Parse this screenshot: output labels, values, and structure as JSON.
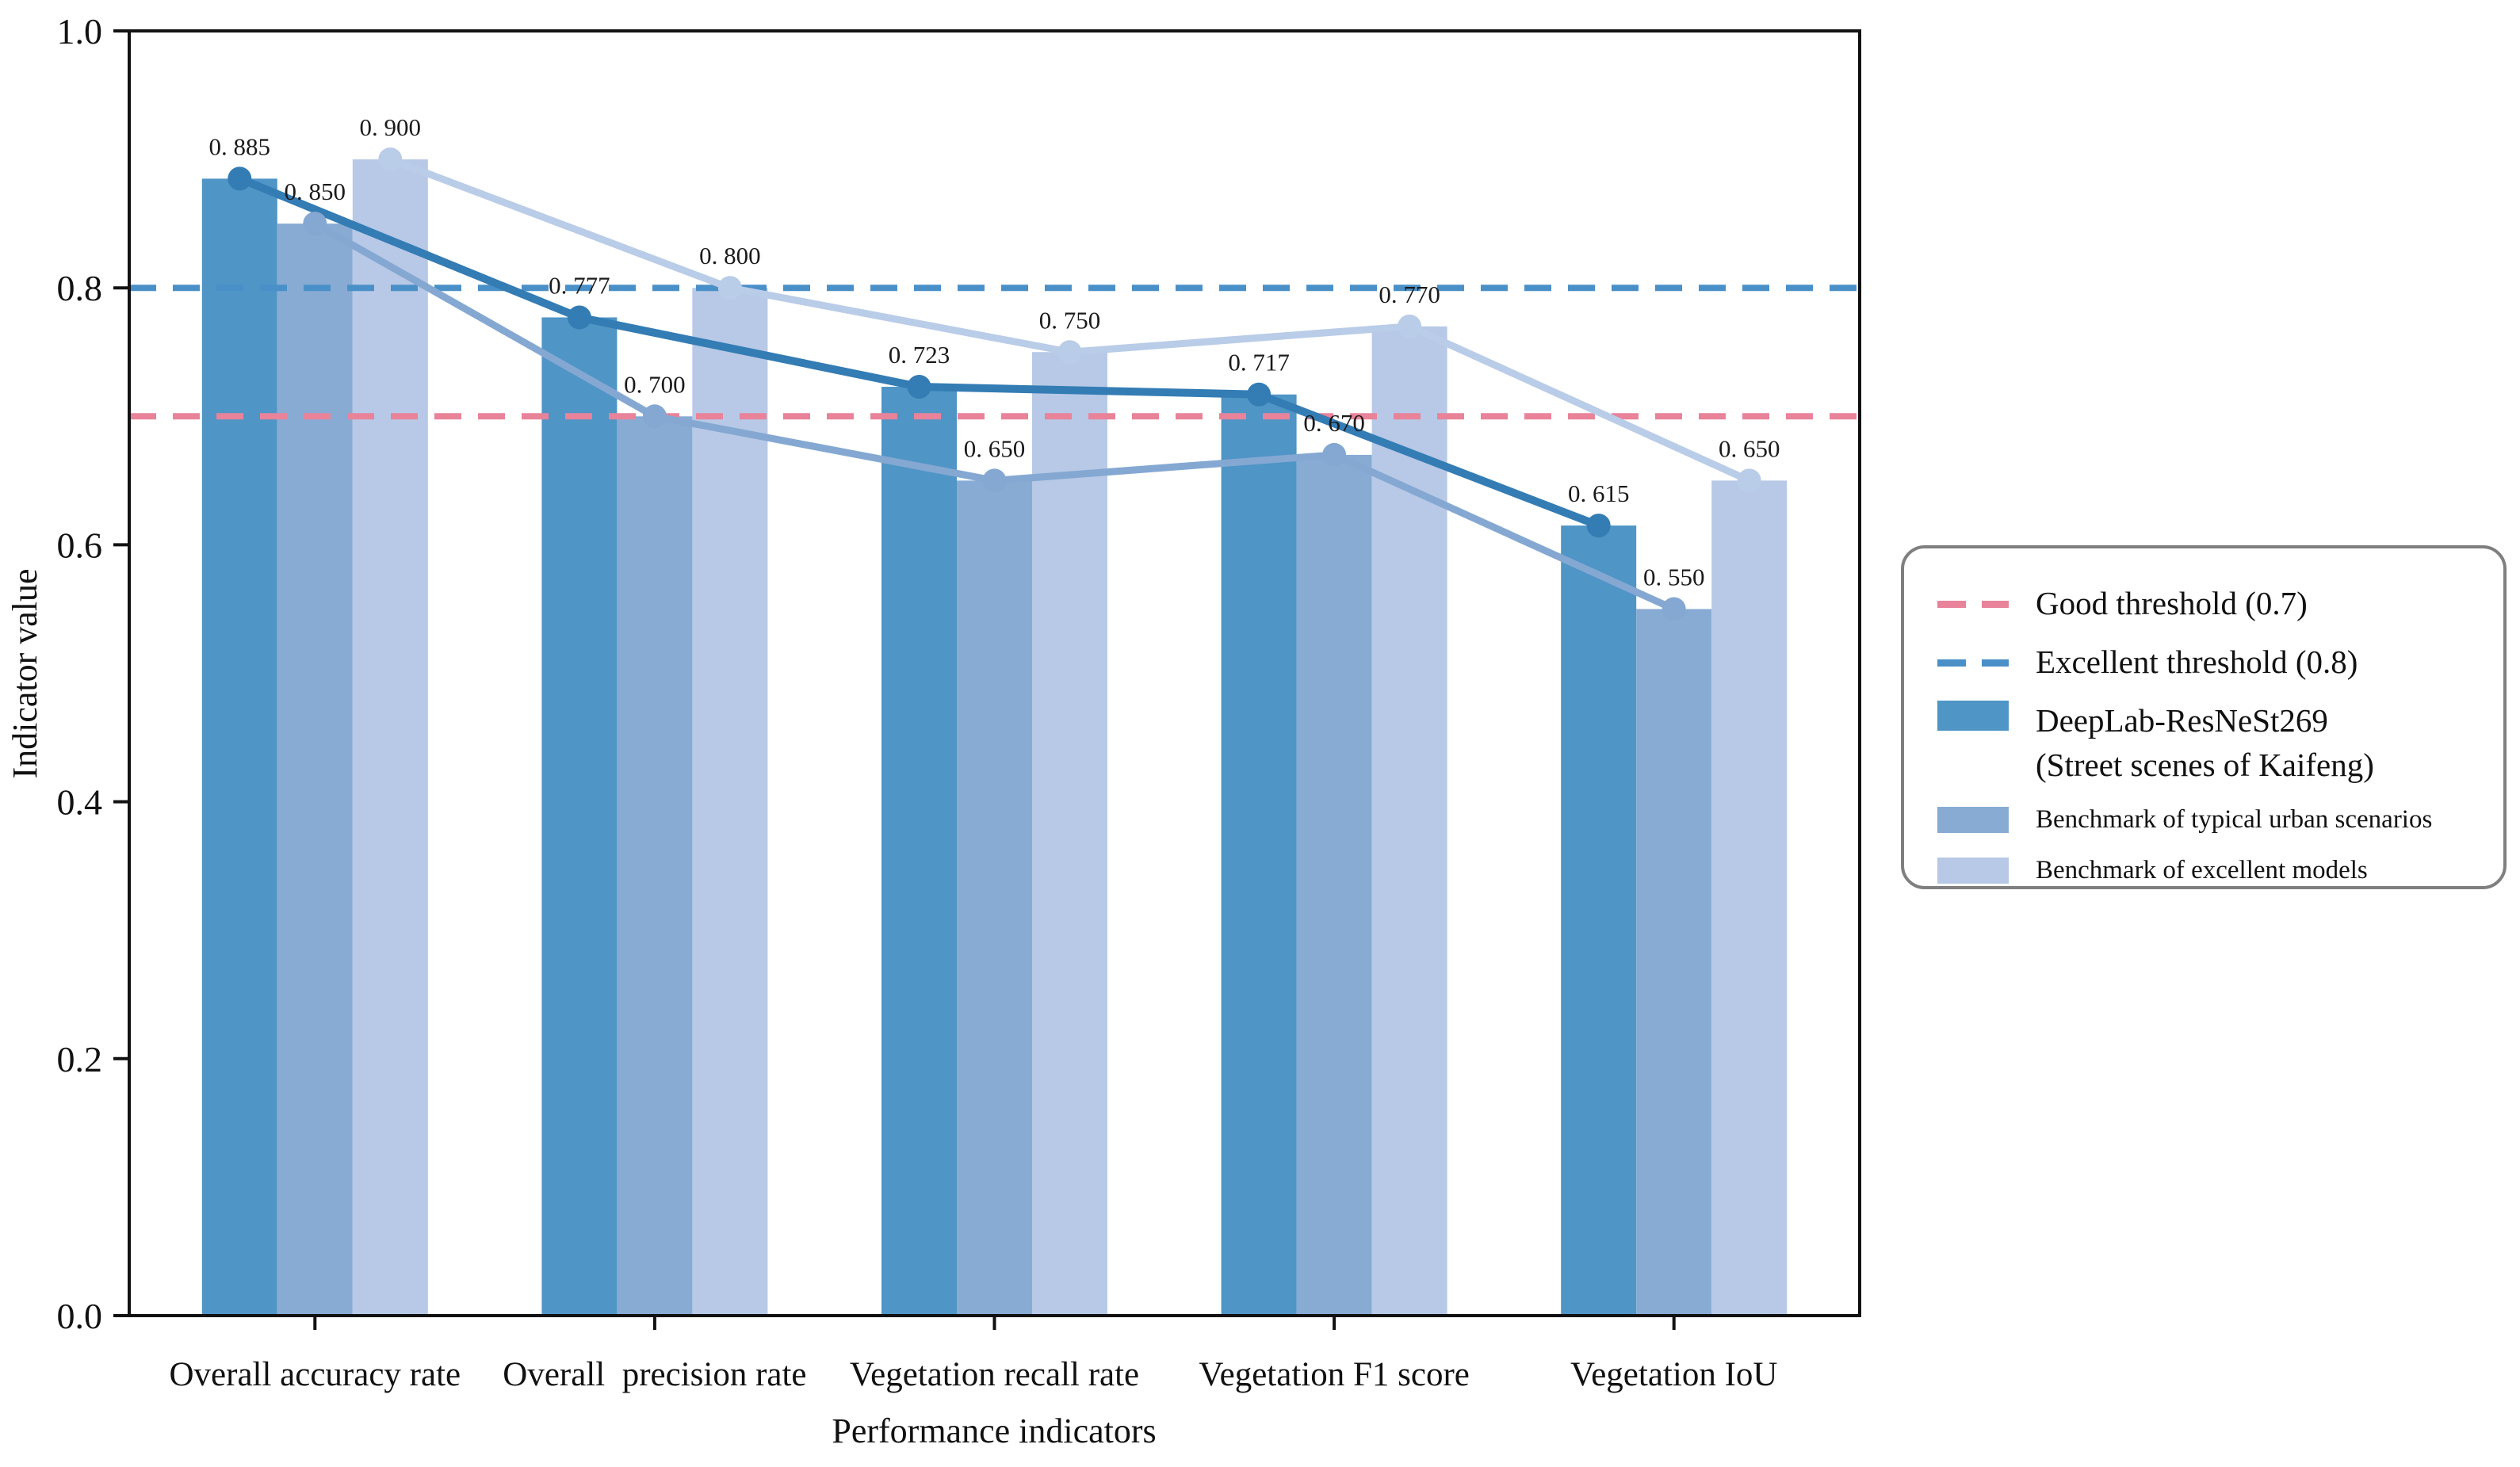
{
  "figure": {
    "background": "#ffffff",
    "axis_color": "#111111",
    "text_color": "#111111"
  },
  "chart_data": {
    "type": "bar",
    "line_overlay": true,
    "title": "",
    "xlabel": "Performance indicators",
    "ylabel": "Indicator value",
    "ylim": [
      0.0,
      1.0
    ],
    "yticks": [
      0.0,
      0.2,
      0.4,
      0.6,
      0.8,
      1.0
    ],
    "grid": false,
    "legend_position": "right-outside",
    "categories": [
      "Overall accuracy rate",
      "Overall  precision rate",
      "Vegetation recall rate",
      "Vegetation F1 score",
      "Vegetation IoU"
    ],
    "series": [
      {
        "id": "deeplab",
        "name": "DeepLab-ResNeSt269 (Street scenes of Kaifeng)",
        "values": [
          0.885,
          0.777,
          0.723,
          0.717,
          0.615
        ],
        "bar_color": "#4f95c6",
        "line_color": "#347cb4"
      },
      {
        "id": "typical-urban",
        "name": "Benchmark of typical urban scenarios",
        "values": [
          0.85,
          0.7,
          0.65,
          0.67,
          0.55
        ],
        "bar_color": "#88abd4",
        "line_color": "#84a8d2"
      },
      {
        "id": "excellent-models",
        "name": "Benchmark of excellent models",
        "values": [
          0.9,
          0.8,
          0.75,
          0.77,
          0.65
        ],
        "bar_color": "#b7c9e6",
        "line_color": "#b9cce8"
      }
    ],
    "thresholds": [
      {
        "id": "good",
        "label": "Good threshold (0.7)",
        "value": 0.7,
        "color": "#e8839a"
      },
      {
        "id": "excellent",
        "label": "Excellent threshold (0.8)",
        "value": 0.8,
        "color": "#4a90c8"
      }
    ]
  },
  "legend": {
    "entries": [
      {
        "label": "Good threshold (0.7)"
      },
      {
        "label": "Excellent threshold (0.8)"
      },
      {
        "label": "DeepLab-ResNeSt269",
        "label2": "(Street scenes of Kaifeng)"
      },
      {
        "label": "Benchmark of typical urban scenarios"
      },
      {
        "label": "Benchmark of excellent models"
      }
    ],
    "border_color": "#7f7f7f"
  }
}
